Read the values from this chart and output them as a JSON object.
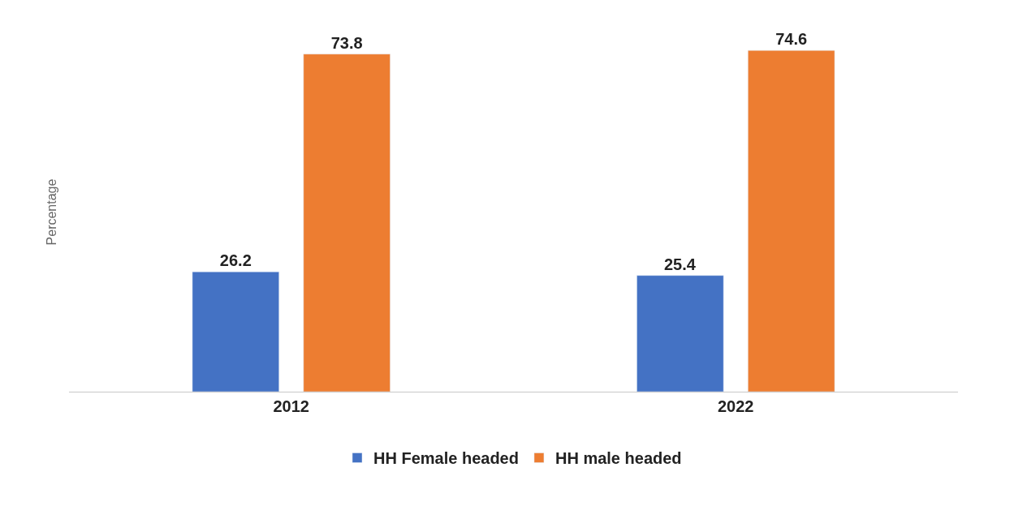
{
  "chart_data": {
    "type": "bar",
    "ylabel": "Percentage",
    "categories": [
      "2012",
      "2022"
    ],
    "series": [
      {
        "name": "HH Female headed",
        "color": "#4472c4",
        "values": [
          26.2,
          25.4
        ]
      },
      {
        "name": "HH male headed",
        "color": "#ed7d31",
        "values": [
          73.8,
          74.6
        ]
      }
    ],
    "data_labels": true,
    "legend": "bottom"
  }
}
